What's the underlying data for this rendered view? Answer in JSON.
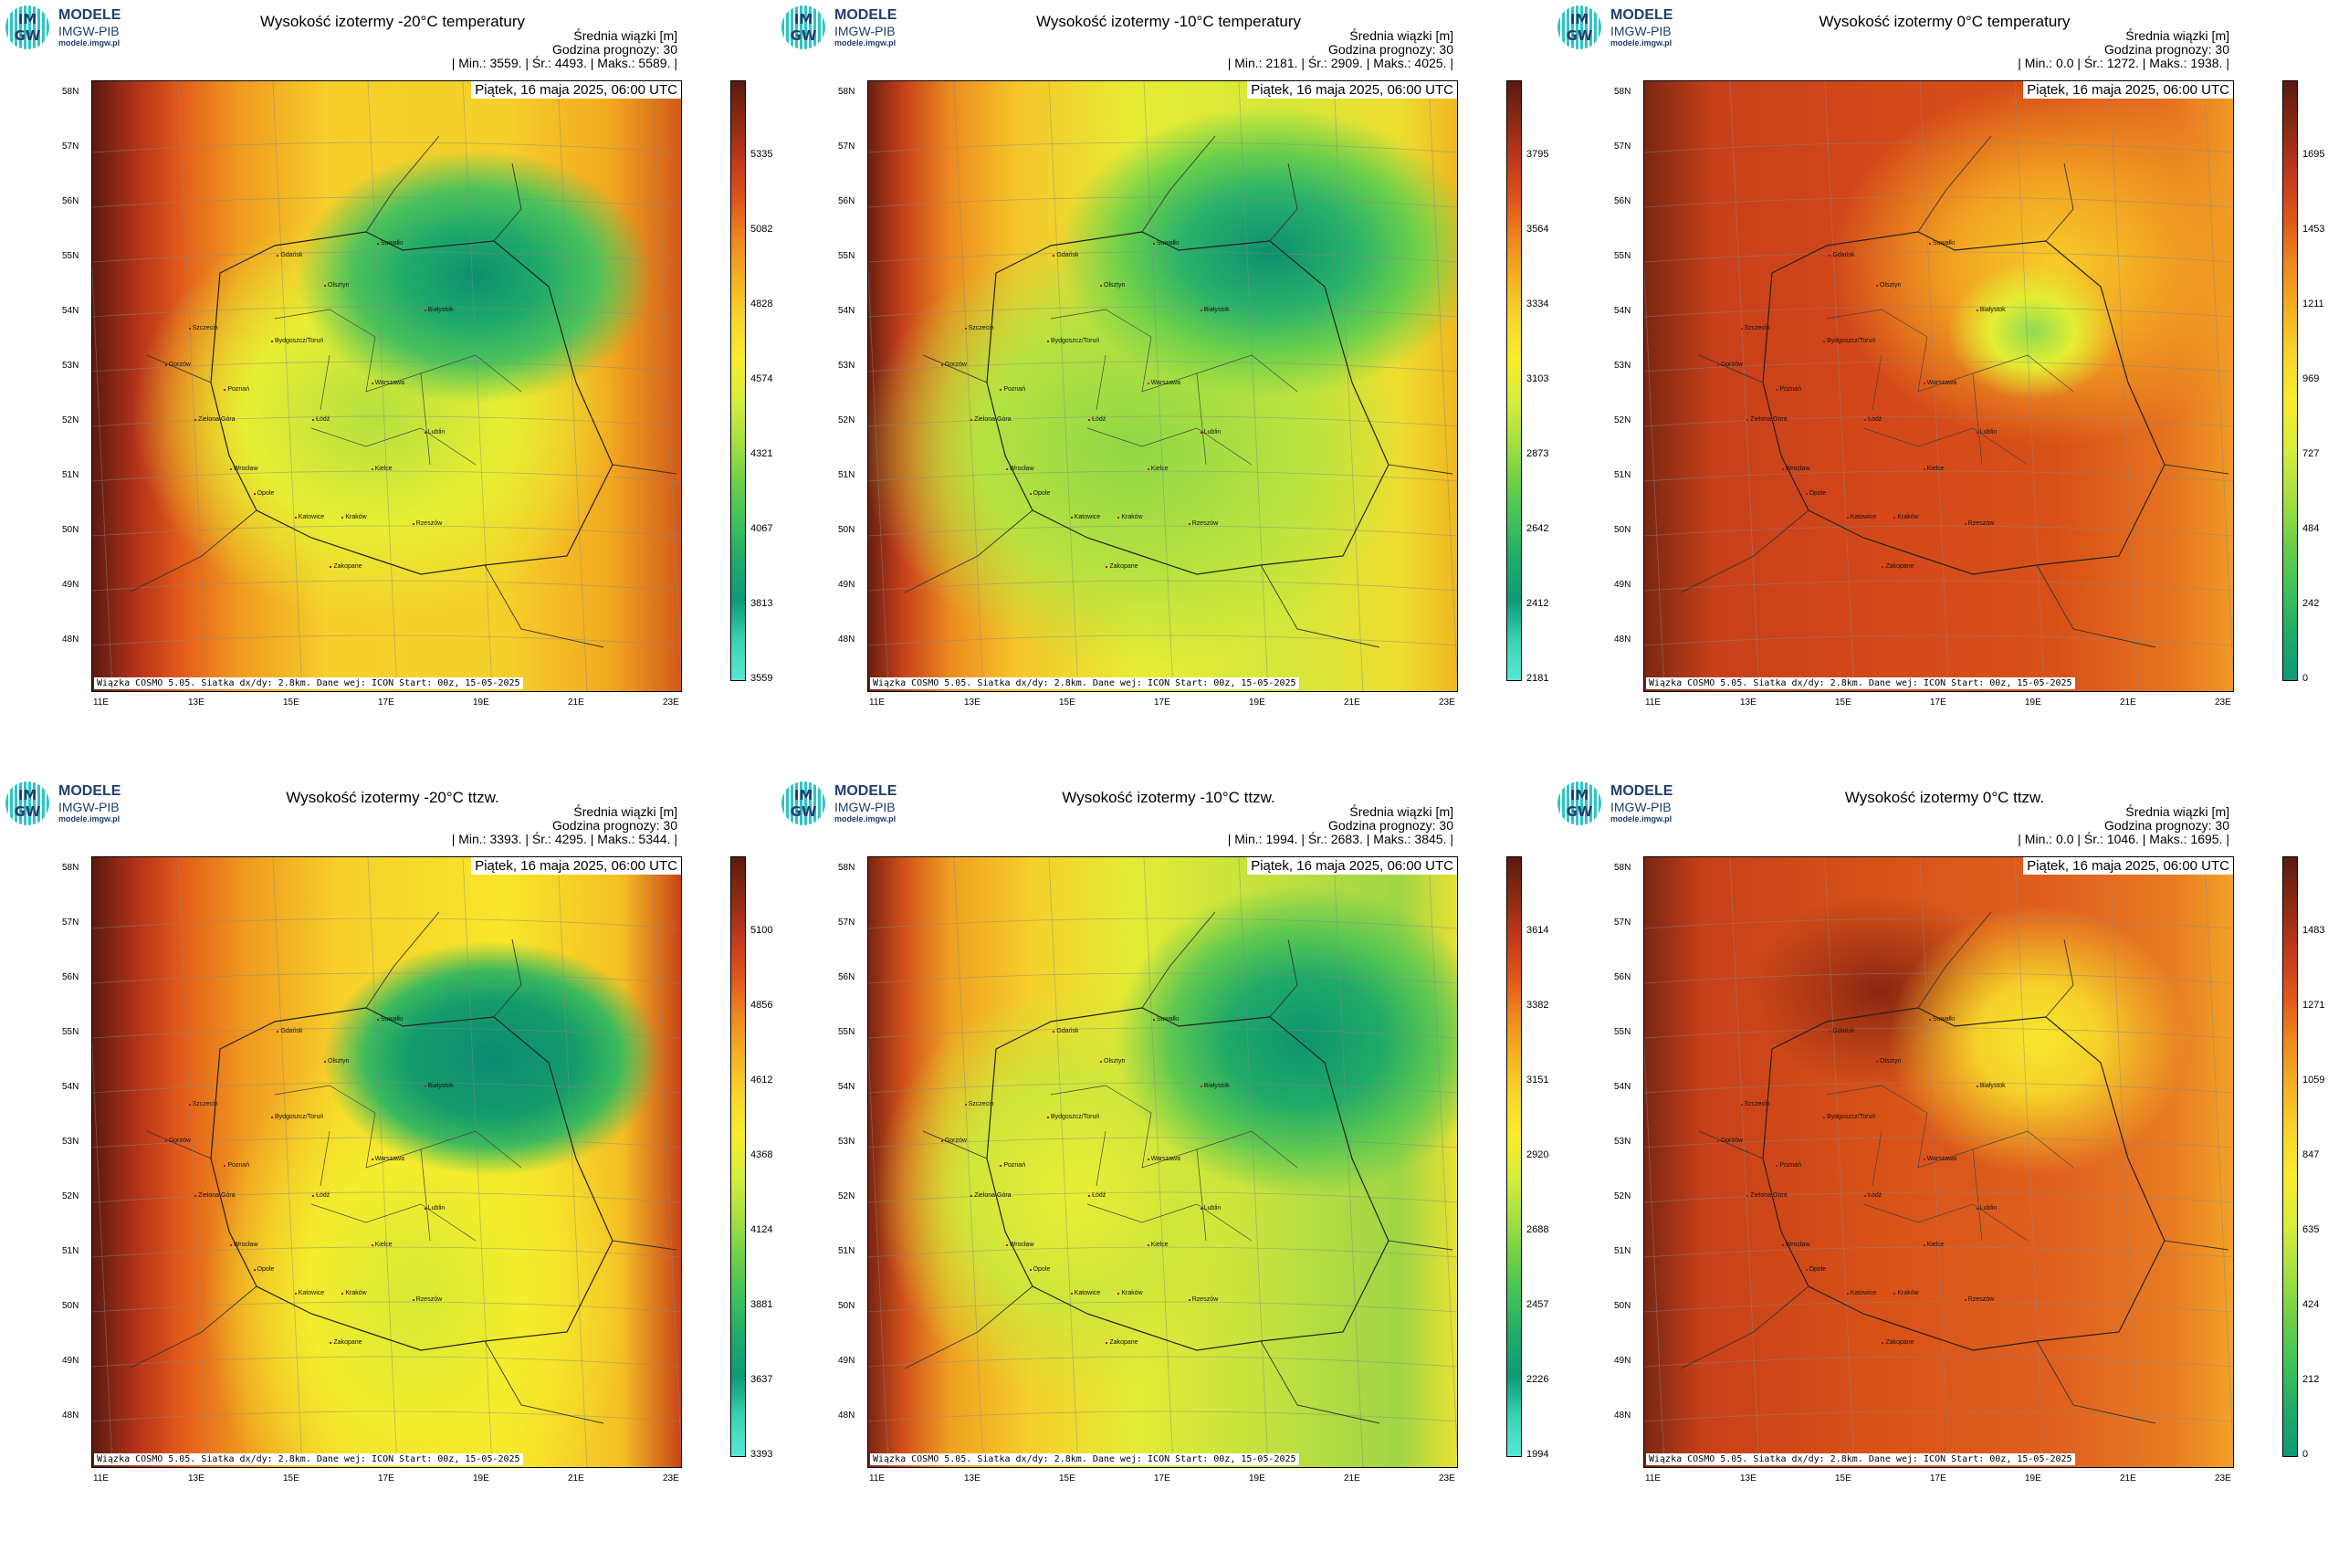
{
  "logo": {
    "badge_top": "IM",
    "badge_bottom": "GW",
    "line1": "MODELE",
    "line2": "IMGW-PIB",
    "line3": "modele.imgw.pl"
  },
  "common": {
    "info_label": "Średnia wiązki [m]",
    "forecast_label": "Godzina prognozy: 30",
    "date": "Piątek, 16 maja 2025, 06:00 UTC",
    "footer": "Wiązka COSMO 5.05. Siatka dx/dy: 2.8km. Dane wej: ICON Start: 00z, 15-05-2025",
    "lat_labels": [
      "58N",
      "57N",
      "56N",
      "55N",
      "54N",
      "53N",
      "52N",
      "51N",
      "50N",
      "49N",
      "48N"
    ],
    "lon_labels": [
      "11E",
      "13E",
      "15E",
      "17E",
      "19E",
      "21E",
      "23E"
    ],
    "cities": [
      "Gdańsk",
      "Olsztyn",
      "Suwałki",
      "Białystok",
      "Szczecin",
      "Bydgoszcz/Toruń",
      "Gorzów",
      "Poznań",
      "Warszawa",
      "Łódź",
      "Zielona Góra",
      "Lublin",
      "Wrocław",
      "Kielce",
      "Opole",
      "Katowice",
      "Kraków",
      "Rzeszów",
      "Zakopane"
    ]
  },
  "colors": {
    "scale_warm": [
      "#5a1a10",
      "#8b2a12",
      "#c0391b",
      "#e0561a",
      "#ee8a1e",
      "#f6b31f",
      "#f7d72a",
      "#f9ee2a"
    ],
    "scale_cool": [
      "#d6ee3a",
      "#a8e040",
      "#6fd046",
      "#3fc25a",
      "#1faa6a",
      "#0f9a78",
      "#38d4b0",
      "#58e8d8"
    ]
  },
  "chart_data": [
    {
      "type": "heatmap",
      "title": "Wysokość izotermy -20°C temperatury",
      "stats": {
        "min": "3559.",
        "mean": "4493.",
        "max": "5589."
      },
      "colorbar_ticks": [
        3559,
        3813,
        4067,
        4321,
        4574,
        4828,
        5082,
        5335
      ],
      "colorbar_range": [
        3559,
        5589
      ],
      "fill": "-20t"
    },
    {
      "type": "heatmap",
      "title": "Wysokość izotermy -10°C temperatury",
      "stats": {
        "min": "2181.",
        "mean": "2909.",
        "max": "4025."
      },
      "colorbar_ticks": [
        2181,
        2412,
        2642,
        2873,
        3103,
        3334,
        3564,
        3795
      ],
      "colorbar_range": [
        2181,
        4025
      ],
      "fill": "-10t"
    },
    {
      "type": "heatmap",
      "title": "Wysokość izotermy 0°C temperatury",
      "stats": {
        "min": "0.0",
        "mean": "1272.",
        "max": "1938."
      },
      "colorbar_ticks": [
        0,
        242,
        484,
        727,
        969,
        1211,
        1453,
        1695
      ],
      "colorbar_range": [
        0,
        1938
      ],
      "fill": "0t"
    },
    {
      "type": "heatmap",
      "title": "Wysokość izotermy -20°C ttzw.",
      "stats": {
        "min": "3393.",
        "mean": "4295.",
        "max": "5344."
      },
      "colorbar_ticks": [
        3393,
        3637,
        3881,
        4124,
        4368,
        4612,
        4856,
        5100
      ],
      "colorbar_range": [
        3393,
        5344
      ],
      "fill": "-20w"
    },
    {
      "type": "heatmap",
      "title": "Wysokość izotermy -10°C ttzw.",
      "stats": {
        "min": "1994.",
        "mean": "2683.",
        "max": "3845."
      },
      "colorbar_ticks": [
        1994,
        2226,
        2457,
        2688,
        2920,
        3151,
        3382,
        3614
      ],
      "colorbar_range": [
        1994,
        3845
      ],
      "fill": "-10w"
    },
    {
      "type": "heatmap",
      "title": "Wysokość izotermy 0°C ttzw.",
      "stats": {
        "min": "0.0",
        "mean": "1046.",
        "max": "1695."
      },
      "colorbar_ticks": [
        0,
        212,
        424,
        635,
        847,
        1059,
        1271,
        1483
      ],
      "colorbar_range": [
        0,
        1695
      ],
      "fill": "0w"
    }
  ]
}
